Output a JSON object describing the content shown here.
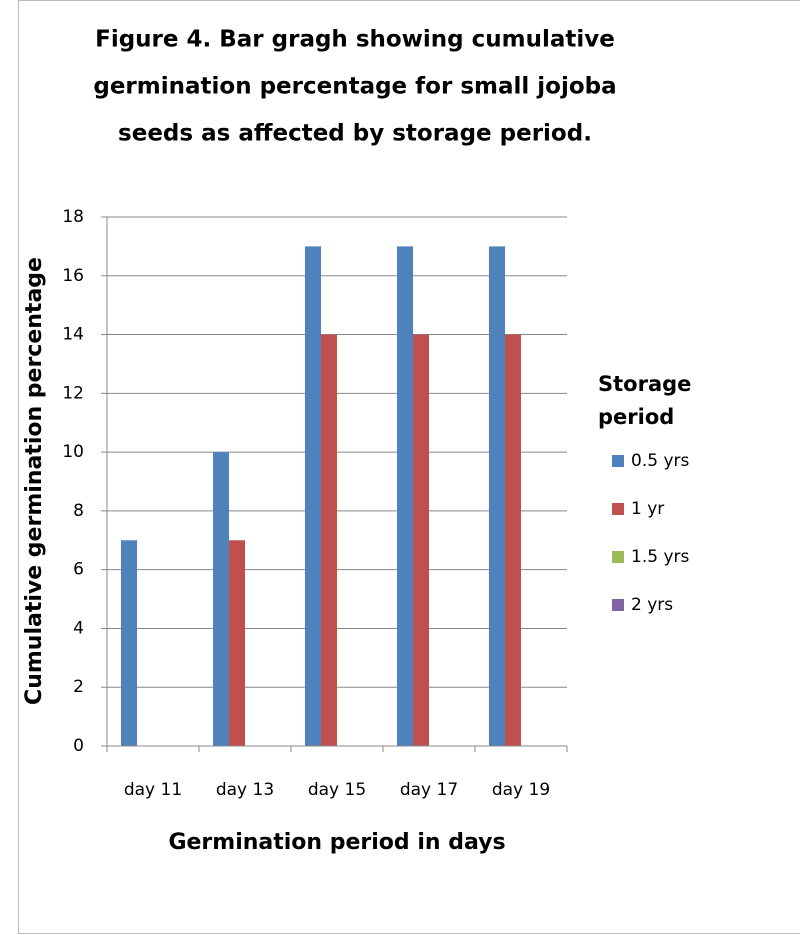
{
  "chart_data": {
    "type": "bar",
    "title": [
      "Figure 4. Bar gragh showing cumulative",
      "germination percentage for small  jojoba",
      "seeds as affected by storage period."
    ],
    "x_label": "Germination period in days",
    "y_label": "Cumulative germination  percentage",
    "categories": [
      "day 11",
      "day 13",
      "day 15",
      "day 17",
      "day 19"
    ],
    "series": [
      {
        "name": "0.5 yrs",
        "color": "#4f81bd",
        "values": [
          7,
          10,
          17,
          17,
          17
        ]
      },
      {
        "name": "1 yr",
        "color": "#c0504d",
        "values": [
          0,
          7,
          14,
          14,
          14
        ]
      },
      {
        "name": "1.5 yrs",
        "color": "#9bbb59",
        "values": [
          0,
          0,
          0,
          0,
          0
        ]
      },
      {
        "name": "2 yrs",
        "color": "#8064a2",
        "values": [
          0,
          0,
          0,
          0,
          0
        ]
      }
    ],
    "legend_title": [
      "Storage",
      "period"
    ],
    "legend": "right",
    "ylim": [
      0,
      18
    ],
    "yticks": [
      0,
      2,
      4,
      6,
      8,
      10,
      12,
      14,
      16,
      18
    ],
    "grid": true
  }
}
